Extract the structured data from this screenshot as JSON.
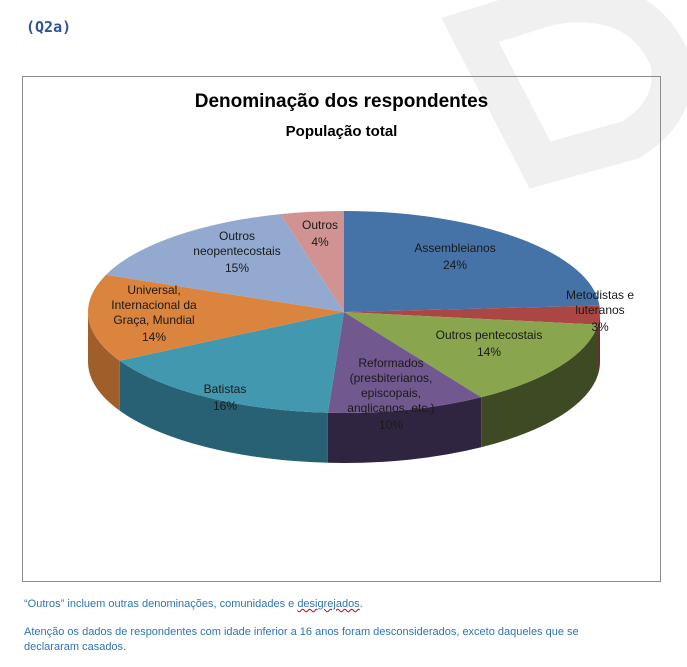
{
  "question_label": "(Q2a)",
  "chart_data": {
    "type": "pie",
    "title": "Denominação dos respondentes",
    "subtitle": "População total",
    "slices": [
      {
        "name": "Assembleianos",
        "lines": [
          "Assembleianos"
        ],
        "value": 24,
        "pct_label": "24%",
        "color": "#4572a7",
        "side": "#2c4a6e"
      },
      {
        "name": "Metodistas e luteranos",
        "lines": [
          "Metodistas e",
          "luteranos"
        ],
        "value": 3,
        "pct_label": "3%",
        "color": "#aa4643",
        "side": "#6e2d2b"
      },
      {
        "name": "Outros pentecostais",
        "lines": [
          "Outros pentecostais"
        ],
        "value": 14,
        "pct_label": "14%",
        "color": "#89a54e",
        "side": "#3e4a23"
      },
      {
        "name": "Reformados (presbiterianos, episcopais, anglicanos, etc.)",
        "lines": [
          "Reformados",
          "(presbiterianos,",
          "episcopais,",
          "anglicanos, etc.)"
        ],
        "value": 10,
        "pct_label": "10%",
        "color": "#71588f",
        "side": "#2f2540"
      },
      {
        "name": "Batistas",
        "lines": [
          "Batistas"
        ],
        "value": 16,
        "pct_label": "16%",
        "color": "#4198af",
        "side": "#286173"
      },
      {
        "name": "Universal, Internacional da Graça, Mundial",
        "lines": [
          "Universal,",
          "Internacional da",
          "Graça, Mundial"
        ],
        "value": 14,
        "pct_label": "14%",
        "color": "#db843d",
        "side": "#a05f2a"
      },
      {
        "name": "Outros neopentecostais",
        "lines": [
          "Outros",
          "neopentecostais"
        ],
        "value": 15,
        "pct_label": "15%",
        "color": "#93a9cf",
        "side": "#6d7f9e"
      },
      {
        "name": "Outros",
        "lines": [
          "Outros"
        ],
        "value": 4,
        "pct_label": "4%",
        "color": "#d19392",
        "side": "#9c6d6c"
      }
    ]
  },
  "notes": {
    "outros_prefix": "“Outros” incluem outras denominações, comunidades e ",
    "outros_word": "desigrejados",
    "outros_suffix": ".",
    "atencao": "Atenção os dados de respondentes com idade inferior a 16 anos foram desconsiderados, exceto daqueles que se declararam casados."
  }
}
